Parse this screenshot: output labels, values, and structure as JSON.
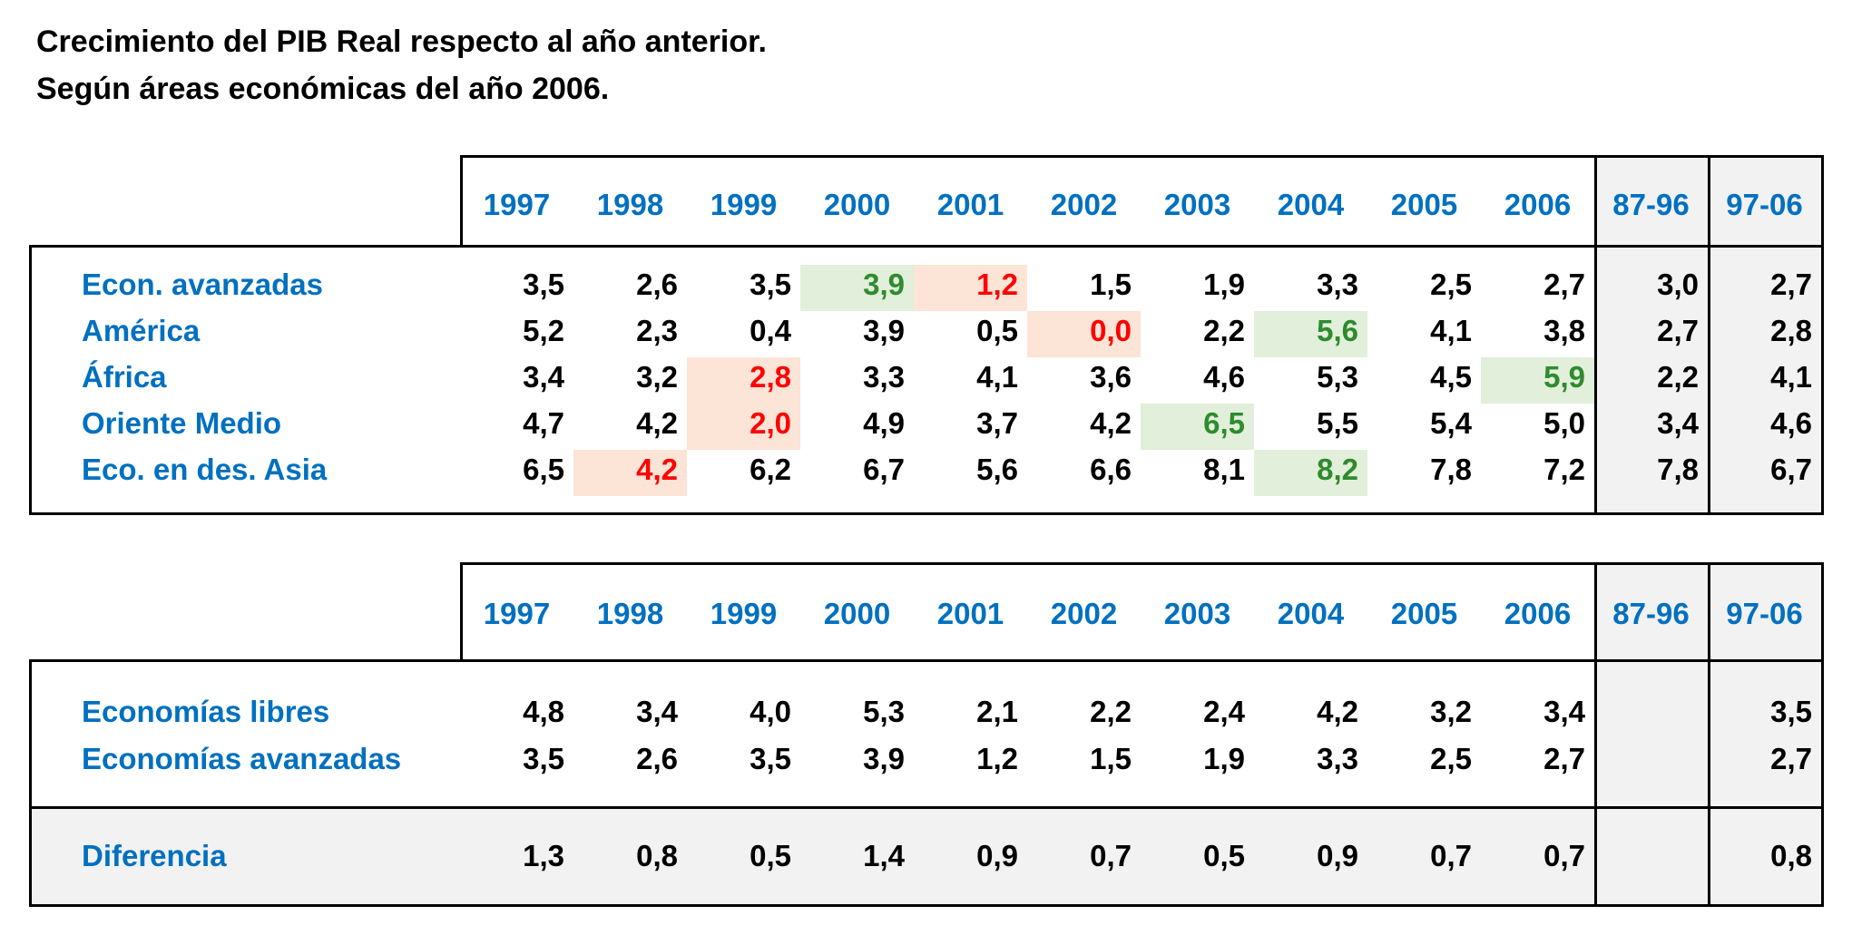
{
  "title": {
    "line1": "Crecimiento del PIB Real respecto al año anterior.",
    "line2": "Según áreas económicas del año 2006."
  },
  "colors": {
    "label_blue": "#0070c0",
    "highlight_low_bg": "#fce4d6",
    "highlight_low_text": "#ff0000",
    "highlight_high_bg": "#e2efda",
    "highlight_high_text": "#2e8b2e",
    "shaded_bg": "#f2f2f2"
  },
  "chart_data": [
    {
      "type": "table",
      "columns": [
        "1997",
        "1998",
        "1999",
        "2000",
        "2001",
        "2002",
        "2003",
        "2004",
        "2005",
        "2006",
        "87-96",
        "97-06"
      ],
      "rows": [
        {
          "label": "Econ. avanzadas",
          "values": [
            "3,5",
            "2,6",
            "3,5",
            "3,9",
            "1,2",
            "1,5",
            "1,9",
            "3,3",
            "2,5",
            "2,7",
            "3,0",
            "2,7"
          ],
          "min_col": 4,
          "max_col": 3
        },
        {
          "label": "América",
          "values": [
            "5,2",
            "2,3",
            "0,4",
            "3,9",
            "0,5",
            "0,0",
            "2,2",
            "5,6",
            "4,1",
            "3,8",
            "2,7",
            "2,8"
          ],
          "min_col": 5,
          "max_col": 7
        },
        {
          "label": "África",
          "values": [
            "3,4",
            "3,2",
            "2,8",
            "3,3",
            "4,1",
            "3,6",
            "4,6",
            "5,3",
            "4,5",
            "5,9",
            "2,2",
            "4,1"
          ],
          "min_col": 2,
          "max_col": 9
        },
        {
          "label": "Oriente Medio",
          "values": [
            "4,7",
            "4,2",
            "2,0",
            "4,9",
            "3,7",
            "4,2",
            "6,5",
            "5,5",
            "5,4",
            "5,0",
            "3,4",
            "4,6"
          ],
          "min_col": 2,
          "max_col": 6
        },
        {
          "label": "Eco. en des. Asia",
          "values": [
            "6,5",
            "4,2",
            "6,2",
            "6,7",
            "5,6",
            "6,6",
            "8,1",
            "8,2",
            "7,8",
            "7,2",
            "7,8",
            "6,7"
          ],
          "min_col": 1,
          "max_col": 7
        }
      ]
    },
    {
      "type": "table",
      "columns": [
        "1997",
        "1998",
        "1999",
        "2000",
        "2001",
        "2002",
        "2003",
        "2004",
        "2005",
        "2006",
        "87-96",
        "97-06"
      ],
      "rows": [
        {
          "label": "Economías libres",
          "values": [
            "4,8",
            "3,4",
            "4,0",
            "5,3",
            "2,1",
            "2,2",
            "2,4",
            "4,2",
            "3,2",
            "3,4",
            "",
            "3,5"
          ]
        },
        {
          "label": "Economías avanzadas",
          "values": [
            "3,5",
            "2,6",
            "3,5",
            "3,9",
            "1,2",
            "1,5",
            "1,9",
            "3,3",
            "2,5",
            "2,7",
            "",
            "2,7"
          ]
        }
      ],
      "footer": {
        "label": "Diferencia",
        "values": [
          "1,3",
          "0,8",
          "0,5",
          "1,4",
          "0,9",
          "0,7",
          "0,5",
          "0,9",
          "0,7",
          "0,7",
          "",
          "0,8"
        ]
      }
    }
  ]
}
